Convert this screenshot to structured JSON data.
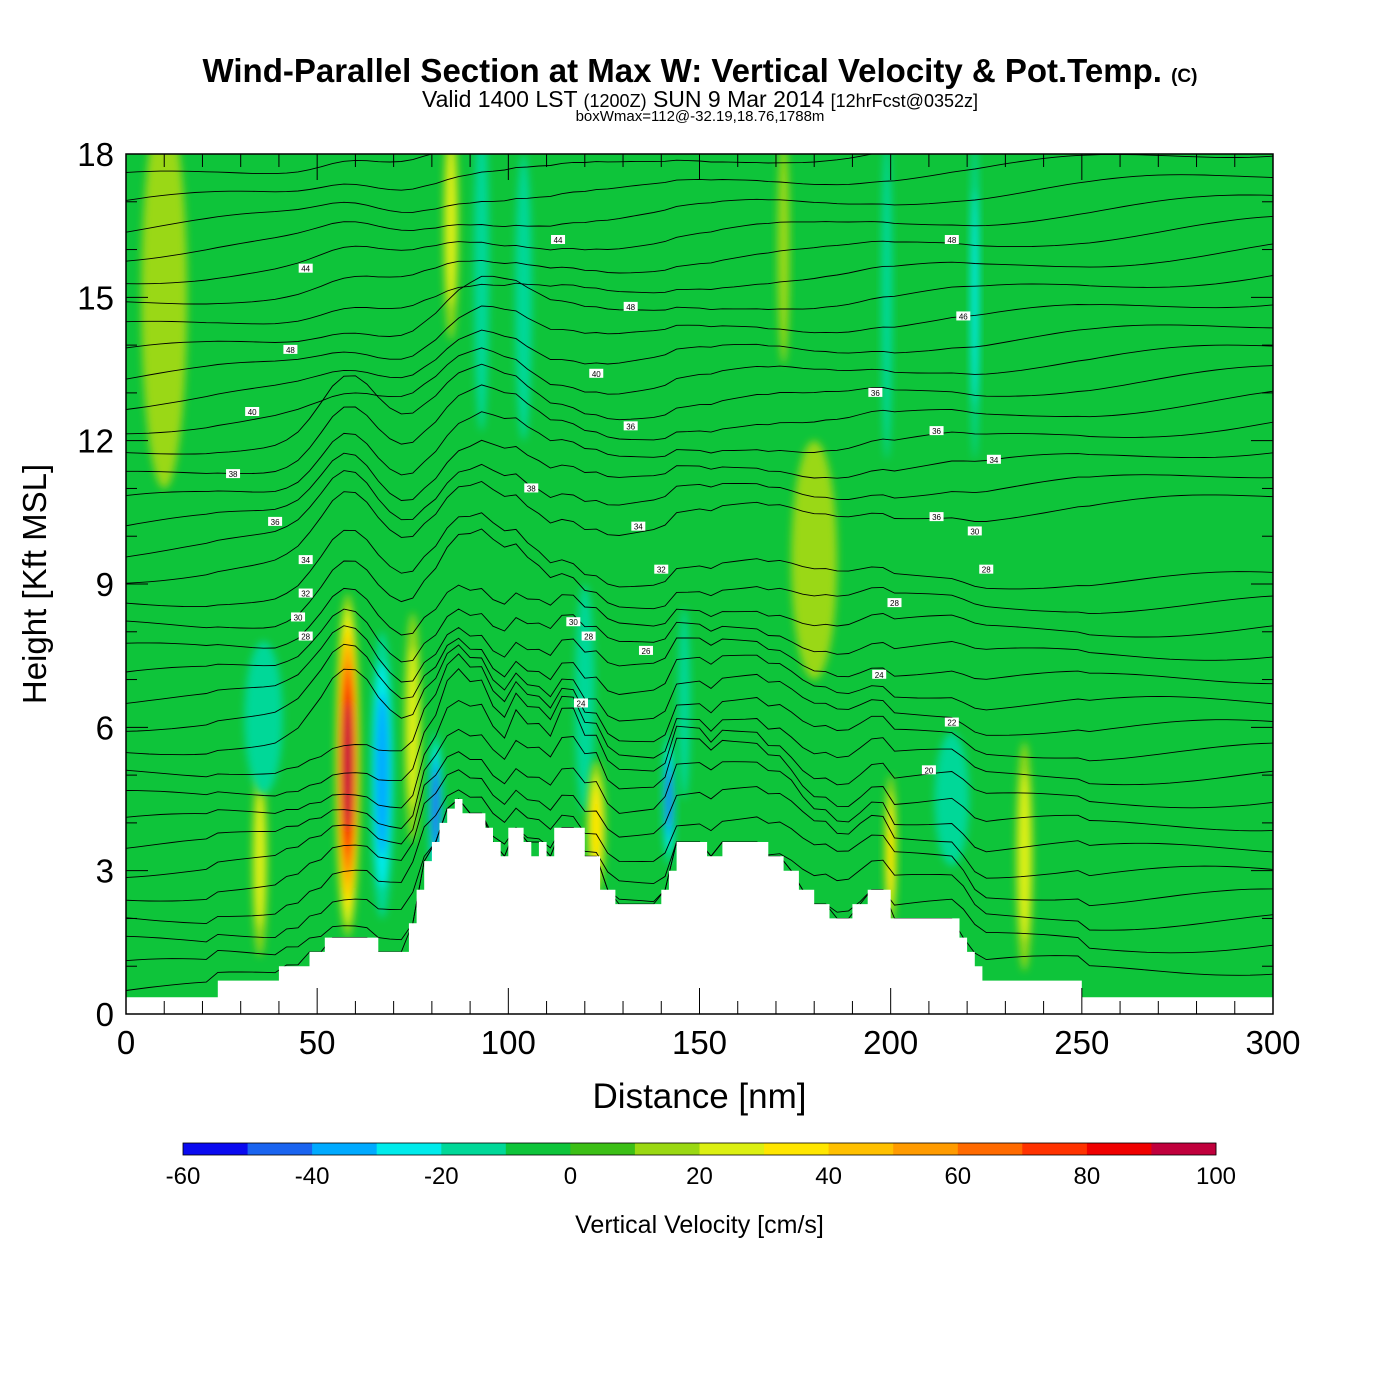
{
  "title": {
    "main": "Wind-Parallel Section at Max W: Vertical Velocity & Pot.Temp.",
    "copyright": "(C)",
    "valid_prefix": "Valid 1400 LST",
    "valid_zulu": "(1200Z)",
    "valid_date": "SUN 9 Mar 2014",
    "forecast": "[12hrFcst@0352z]",
    "box": "boxWmax=112@-32.19,18.76,1788m"
  },
  "colorbar": {
    "label": "Vertical Velocity [cm/s]",
    "bounds": [
      -60,
      -50,
      -40,
      -30,
      -20,
      -10,
      0,
      10,
      20,
      30,
      40,
      50,
      60,
      70,
      80,
      90,
      100
    ],
    "tick_values": [
      -60,
      -40,
      -20,
      0,
      20,
      40,
      60,
      80,
      100
    ],
    "tick_labels": [
      "-60",
      "-40",
      "-20",
      "0",
      "20",
      "40",
      "60",
      "80",
      "100"
    ],
    "colors": [
      "#0a0af0",
      "#1a64f0",
      "#00aaff",
      "#00ebeb",
      "#00d898",
      "#0ec43a",
      "#3cbf16",
      "#9ad812",
      "#dcf012",
      "#ffe600",
      "#ffc000",
      "#ff9b00",
      "#ff6a00",
      "#ff3200",
      "#f00000",
      "#c0003c"
    ]
  },
  "chart_data": {
    "type": "heatmap",
    "title": "Wind-Parallel Section at Max W: Vertical Velocity & Pot.Temp.",
    "xlabel": "Distance [nm]",
    "ylabel": "Height [Kft MSL]",
    "xlim": [
      0,
      300
    ],
    "ylim": [
      0,
      18
    ],
    "x_ticks": [
      0,
      50,
      100,
      150,
      200,
      250,
      300
    ],
    "x_tick_labels": [
      "0",
      "50",
      "100",
      "150",
      "200",
      "250",
      "300"
    ],
    "y_ticks": [
      0,
      3,
      6,
      9,
      12,
      15,
      18
    ],
    "y_tick_labels": [
      "0",
      "3",
      "6",
      "9",
      "12",
      "15",
      "18"
    ],
    "background_color": "#0ec43a",
    "terrain": {
      "x": [
        0,
        24,
        24,
        40,
        40,
        48,
        48,
        52,
        52,
        66,
        66,
        74,
        74,
        76,
        76,
        78,
        78,
        80,
        80,
        82,
        82,
        84,
        84,
        86,
        86,
        88,
        88,
        94,
        94,
        96,
        96,
        98,
        98,
        100,
        100,
        104,
        104,
        106,
        106,
        108,
        108,
        110,
        110,
        112,
        112,
        120,
        120,
        124,
        124,
        128,
        128,
        140,
        140,
        142,
        142,
        144,
        144,
        152,
        152,
        156,
        156,
        168,
        168,
        172,
        172,
        176,
        176,
        180,
        180,
        184,
        184,
        190,
        190,
        194,
        194,
        200,
        200,
        218,
        218,
        220,
        220,
        222,
        222,
        224,
        224,
        250,
        250,
        300
      ],
      "y": [
        0.35,
        0.35,
        0.7,
        0.7,
        1.0,
        1.0,
        1.3,
        1.3,
        1.6,
        1.6,
        1.3,
        1.3,
        1.9,
        1.9,
        2.6,
        2.6,
        3.2,
        3.2,
        3.6,
        3.6,
        4.0,
        4.0,
        4.3,
        4.3,
        4.5,
        4.5,
        4.2,
        4.2,
        3.9,
        3.9,
        3.6,
        3.6,
        3.3,
        3.3,
        3.9,
        3.9,
        3.6,
        3.6,
        3.3,
        3.3,
        3.6,
        3.6,
        3.3,
        3.3,
        3.9,
        3.9,
        3.3,
        3.3,
        2.6,
        2.6,
        2.3,
        2.3,
        2.6,
        2.6,
        3.0,
        3.0,
        3.6,
        3.6,
        3.3,
        3.3,
        3.6,
        3.6,
        3.3,
        3.3,
        3.0,
        3.0,
        2.6,
        2.6,
        2.3,
        2.3,
        2.0,
        2.0,
        2.3,
        2.3,
        2.6,
        2.6,
        2.0,
        2.0,
        1.6,
        1.6,
        1.3,
        1.3,
        1.0,
        1.0,
        0.7,
        0.7,
        0.35,
        0.35
      ]
    },
    "w_features": [
      {
        "x": 58,
        "y": 5.2,
        "wx": 3.2,
        "wy": 3.6,
        "w": 95
      },
      {
        "x": 67,
        "y": 5.0,
        "wx": 3.0,
        "wy": 3.0,
        "w": -35
      },
      {
        "x": 75,
        "y": 6.0,
        "wx": 2.2,
        "wy": 2.4,
        "w": 25
      },
      {
        "x": 81,
        "y": 4.3,
        "wx": 1.8,
        "wy": 1.6,
        "w": -45
      },
      {
        "x": 85,
        "y": 16.5,
        "wx": 2.0,
        "wy": 2.4,
        "w": 25
      },
      {
        "x": 93,
        "y": 15.6,
        "wx": 2.0,
        "wy": 3.4,
        "w": -15
      },
      {
        "x": 104,
        "y": 15.0,
        "wx": 2.2,
        "wy": 3.0,
        "w": -12
      },
      {
        "x": 120,
        "y": 6.6,
        "wx": 2.6,
        "wy": 2.4,
        "w": -18
      },
      {
        "x": 123,
        "y": 3.9,
        "wx": 2.4,
        "wy": 1.4,
        "w": 35
      },
      {
        "x": 142,
        "y": 4.5,
        "wx": 1.6,
        "wy": 1.4,
        "w": -40
      },
      {
        "x": 146,
        "y": 6.5,
        "wx": 1.6,
        "wy": 2.0,
        "w": -18
      },
      {
        "x": 172,
        "y": 16.0,
        "wx": 1.6,
        "wy": 2.4,
        "w": 18
      },
      {
        "x": 199,
        "y": 15.0,
        "wx": 1.4,
        "wy": 3.4,
        "w": -16
      },
      {
        "x": 200,
        "y": 3.4,
        "wx": 1.6,
        "wy": 1.6,
        "w": 35
      },
      {
        "x": 216,
        "y": 4.5,
        "wx": 4.5,
        "wy": 1.4,
        "w": -12
      },
      {
        "x": 222,
        "y": 15.0,
        "wx": 1.2,
        "wy": 3.4,
        "w": -22
      },
      {
        "x": 235,
        "y": 3.3,
        "wx": 2.2,
        "wy": 2.4,
        "w": 28
      },
      {
        "x": 35,
        "y": 3.2,
        "wx": 2.0,
        "wy": 2.0,
        "w": 25
      },
      {
        "x": 36,
        "y": 6.2,
        "wx": 5.0,
        "wy": 1.6,
        "w": -18
      },
      {
        "x": 180,
        "y": 9.5,
        "wx": 6.0,
        "wy": 2.5,
        "w": 12
      },
      {
        "x": 10,
        "y": 15.0,
        "wx": 6.0,
        "wy": 4.0,
        "w": 12
      }
    ],
    "theta_contours": {
      "variable": "Potential Temperature",
      "level_labels": [
        {
          "text": "44",
          "x": 47,
          "y": 15.6
        },
        {
          "text": "44",
          "x": 113,
          "y": 16.2
        },
        {
          "text": "48",
          "x": 216,
          "y": 16.2
        },
        {
          "text": "48",
          "x": 43,
          "y": 13.9
        },
        {
          "text": "48",
          "x": 132,
          "y": 14.8
        },
        {
          "text": "46",
          "x": 219,
          "y": 14.6
        },
        {
          "text": "40",
          "x": 123,
          "y": 13.4
        },
        {
          "text": "36",
          "x": 196,
          "y": 13.0
        },
        {
          "text": "40",
          "x": 33,
          "y": 12.6
        },
        {
          "text": "36",
          "x": 132,
          "y": 12.3
        },
        {
          "text": "36",
          "x": 212,
          "y": 12.2
        },
        {
          "text": "34",
          "x": 227,
          "y": 11.6
        },
        {
          "text": "38",
          "x": 28,
          "y": 11.3
        },
        {
          "text": "38",
          "x": 106,
          "y": 11.0
        },
        {
          "text": "36",
          "x": 39,
          "y": 10.3
        },
        {
          "text": "36",
          "x": 212,
          "y": 10.4
        },
        {
          "text": "34",
          "x": 134,
          "y": 10.2
        },
        {
          "text": "30",
          "x": 222,
          "y": 10.1
        },
        {
          "text": "34",
          "x": 47,
          "y": 9.5
        },
        {
          "text": "32",
          "x": 140,
          "y": 9.3
        },
        {
          "text": "28",
          "x": 225,
          "y": 9.3
        },
        {
          "text": "32",
          "x": 47,
          "y": 8.8
        },
        {
          "text": "28",
          "x": 201,
          "y": 8.6
        },
        {
          "text": "30",
          "x": 45,
          "y": 8.3
        },
        {
          "text": "30",
          "x": 117,
          "y": 8.2
        },
        {
          "text": "28",
          "x": 121,
          "y": 7.9
        },
        {
          "text": "28",
          "x": 47,
          "y": 7.9
        },
        {
          "text": "26",
          "x": 136,
          "y": 7.6
        },
        {
          "text": "24",
          "x": 197,
          "y": 7.1
        },
        {
          "text": "24",
          "x": 119,
          "y": 6.5
        },
        {
          "text": "22",
          "x": 216,
          "y": 6.1
        },
        {
          "text": "20",
          "x": 210,
          "y": 5.1
        }
      ]
    }
  }
}
